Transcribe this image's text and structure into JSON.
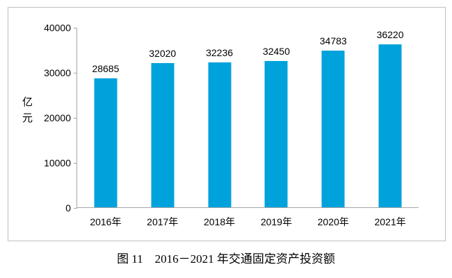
{
  "caption": "图 11　2016－2021 年交通固定资产投资额",
  "y_axis_title_chars": [
    "亿",
    "元"
  ],
  "colors": {
    "bar": "#00a2dc",
    "axis_line": "#a6a6a6",
    "frame_border": "#bfbfbf",
    "text": "#000000"
  },
  "chart_data": {
    "type": "bar",
    "title": "图 11　2016－2021 年交通固定资产投资额",
    "categories": [
      "2016年",
      "2017年",
      "2018年",
      "2019年",
      "2020年",
      "2021年"
    ],
    "values": [
      28685,
      32020,
      32236,
      32450,
      34783,
      36220
    ],
    "data_labels": [
      "28685",
      "32020",
      "32236",
      "32450",
      "34783",
      "36220"
    ],
    "xlabel": "",
    "ylabel": "亿元",
    "ylim": [
      0,
      40000
    ],
    "ytick_interval": 10000,
    "yticks_top_to_bottom": [
      "40000",
      "30000",
      "20000",
      "10000",
      "0"
    ],
    "grid": false,
    "legend_position": "none",
    "bar_color": "#00a2dc"
  }
}
